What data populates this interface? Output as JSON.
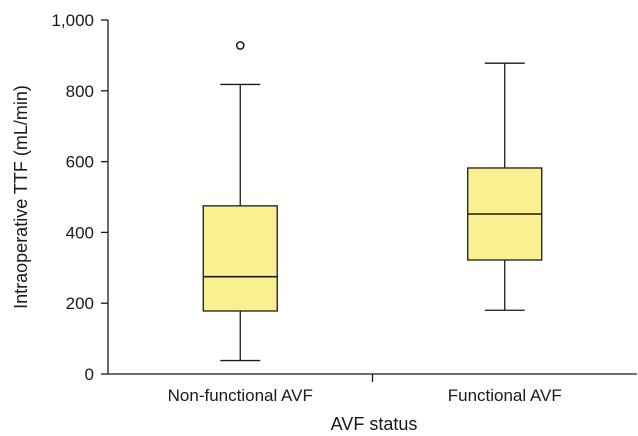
{
  "chart_data": {
    "type": "boxplot",
    "title": "",
    "xlabel": "AVF status",
    "ylabel": "Intraoperative TTF (mL/min)",
    "ylim": [
      0,
      1000
    ],
    "yticks": [
      0,
      200,
      400,
      600,
      800,
      1000
    ],
    "ytick_labels": [
      "0",
      "200",
      "400",
      "600",
      "800",
      "1,000"
    ],
    "categories": [
      "Non-functional AVF",
      "Functional AVF"
    ],
    "boxes": [
      {
        "category": "Non-functional AVF",
        "whisker_low": 38,
        "q1": 178,
        "median": 275,
        "q3": 475,
        "whisker_high": 818,
        "outliers": [
          928
        ]
      },
      {
        "category": "Functional AVF",
        "whisker_low": 180,
        "q1": 322,
        "median": 452,
        "q3": 582,
        "whisker_high": 878,
        "outliers": []
      }
    ],
    "box_color": "#fbf08f",
    "grid": false,
    "legend": "none"
  }
}
